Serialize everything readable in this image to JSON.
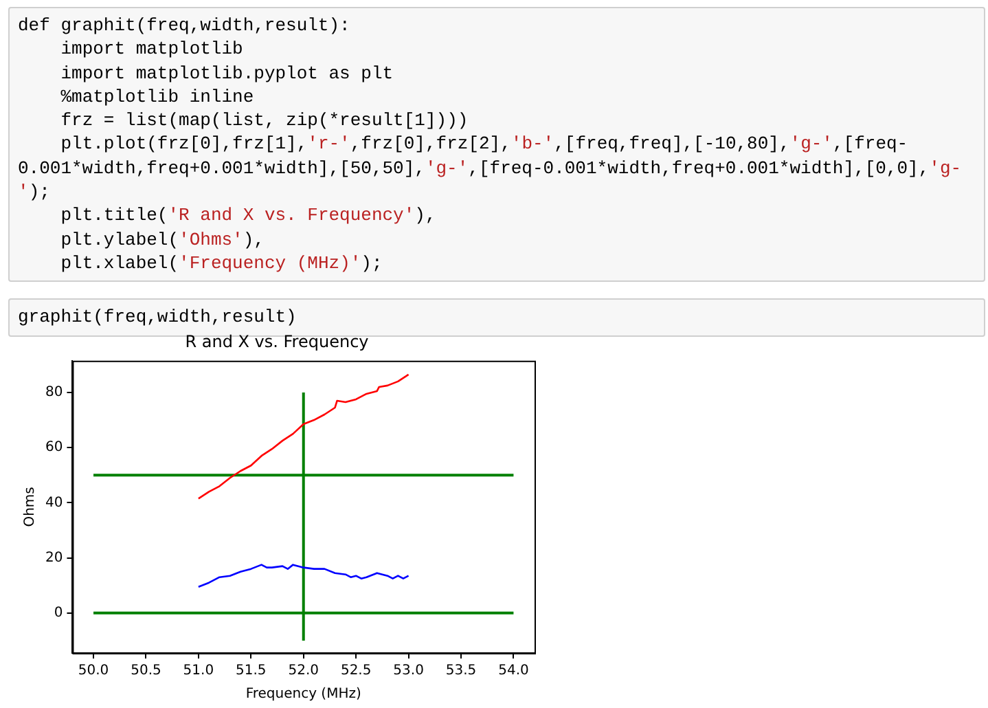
{
  "chart_data": {
    "type": "line",
    "title": "R and X vs. Frequency",
    "xlabel": "Frequency (MHz)",
    "ylabel": "Ohms",
    "annotations": [
      "def graphit(freq,width,result):\n    import matplotlib\n    import matplotlib.pyplot as plt\n    %matplotlib inline\n    frz = list(map(list, zip(*result[1])))\n    plt.plot(frz[0],frz[1],'r-',frz[0],frz[2],'b-',[freq,freq],[-10,80],'g-',[freq-0.001*width,freq+0.001*width],[50,50],'g-',[freq-0.001*width,freq+0.001*width],[0,0],'g-');\n    plt.title('R and X vs. Frequency'),\n    plt.ylabel('Ohms'),\n    plt.xlabel('Frequency (MHz)');",
      "graphit(freq,width,result)"
    ],
    "xlim": [
      49.8,
      54.2
    ],
    "xticks": [
      {
        "value": 50,
        "label": "50.0"
      },
      {
        "value": 50.5,
        "label": "50.5"
      },
      {
        "value": 51,
        "label": "51.0"
      },
      {
        "value": 51.5,
        "label": "51.5"
      },
      {
        "value": 52,
        "label": "52.0"
      },
      {
        "value": 52.5,
        "label": "52.5"
      },
      {
        "value": 53,
        "label": "53.0"
      },
      {
        "value": 53.5,
        "label": "53.5"
      },
      {
        "value": 54,
        "label": "54.0"
      }
    ],
    "ylim": [
      -14.5,
      91.5
    ],
    "yticks": [
      0,
      20,
      40,
      60,
      80
    ],
    "grid": false,
    "legend": false,
    "marker": "none",
    "line_style": "solid",
    "series": [
      {
        "color": "#ff0000",
        "x": [
          51.0,
          51.1,
          51.2,
          51.3,
          51.4,
          51.5,
          51.6,
          51.7,
          51.8,
          51.9,
          52.0,
          52.1,
          52.2,
          52.3,
          52.32,
          52.4,
          52.5,
          52.6,
          52.7,
          52.72,
          52.8,
          52.9,
          53.0
        ],
        "values": [
          41.5,
          44,
          46,
          49,
          51.5,
          53.5,
          57,
          59.5,
          62.5,
          65,
          68.5,
          70,
          72,
          74.5,
          77,
          76.5,
          77.5,
          79.5,
          80.5,
          82,
          82.5,
          84,
          86.5
        ]
      },
      {
        "color": "#0000ff",
        "x": [
          51.0,
          51.1,
          51.2,
          51.3,
          51.4,
          51.5,
          51.6,
          51.65,
          51.7,
          51.8,
          51.85,
          51.9,
          52.0,
          52.1,
          52.2,
          52.3,
          52.4,
          52.45,
          52.5,
          52.55,
          52.6,
          52.7,
          52.8,
          52.85,
          52.9,
          52.95,
          53.0
        ],
        "values": [
          9.5,
          11,
          13,
          13.5,
          15,
          16,
          17.5,
          16.5,
          16.5,
          17,
          16,
          17.5,
          16.5,
          16,
          16,
          14.5,
          14,
          13,
          13.5,
          12.5,
          13,
          14.5,
          13.5,
          12.5,
          13.5,
          12.5,
          13.5
        ]
      },
      {
        "color": "#008000",
        "x": [
          52,
          52
        ],
        "values": [
          -10,
          80
        ]
      },
      {
        "color": "#008000",
        "x": [
          50,
          54
        ],
        "values": [
          50,
          50
        ]
      },
      {
        "color": "#008000",
        "x": [
          50,
          54
        ],
        "values": [
          0,
          0
        ]
      }
    ]
  }
}
